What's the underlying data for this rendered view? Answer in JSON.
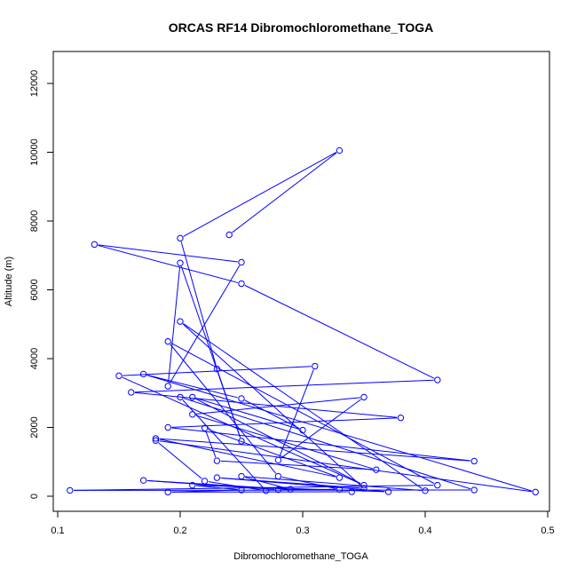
{
  "chart_data": {
    "type": "line",
    "title": "ORCAS RF14 Dibromochloromethane_TOGA",
    "xlabel": "Dibromochloromethane_TOGA",
    "ylabel": "Altitude (m)",
    "xlim": [
      0.1,
      0.5
    ],
    "ylim": [
      0,
      12800
    ],
    "xticks": [
      "0.1",
      "0.2",
      "0.3",
      "0.4",
      "0.5"
    ],
    "yticks": [
      "0",
      "2000",
      "4000",
      "6000",
      "8000",
      "10000",
      "12000"
    ],
    "grid": false,
    "marker": "open-circle",
    "colors": {
      "series": "#0000ff",
      "axis": "#000000"
    },
    "series": [
      {
        "name": "",
        "x": [
          0.24,
          0.33,
          0.2,
          0.23,
          0.25,
          0.2,
          0.19,
          0.25,
          0.13,
          0.25,
          0.41,
          0.16,
          0.38,
          0.19,
          0.44,
          0.18,
          0.33,
          0.22,
          0.23,
          0.36,
          0.21,
          0.35,
          0.28,
          0.31,
          0.15,
          0.35,
          0.21,
          0.3,
          0.25,
          0.17,
          0.49,
          0.18,
          0.22,
          0.27,
          0.2,
          0.44,
          0.11,
          0.41,
          0.19,
          0.28,
          0.33,
          0.28,
          0.17,
          0.29,
          0.25,
          0.4,
          0.2,
          0.35,
          0.23,
          0.37,
          0.21,
          0.25,
          0.19,
          0.34
        ],
        "y": [
          7600,
          10050,
          7500,
          3700,
          1600,
          6780,
          3200,
          6800,
          7320,
          6180,
          3380,
          3020,
          2280,
          2000,
          1020,
          1680,
          540,
          1980,
          1030,
          770,
          2380,
          2880,
          1050,
          3780,
          3500,
          320,
          2880,
          1920,
          2840,
          3550,
          120,
          1620,
          440,
          160,
          2880,
          180,
          170,
          320,
          4500,
          580,
          200,
          190,
          460,
          200,
          580,
          160,
          5080,
          230,
          540,
          130,
          320,
          180,
          120,
          130
        ]
      }
    ]
  }
}
